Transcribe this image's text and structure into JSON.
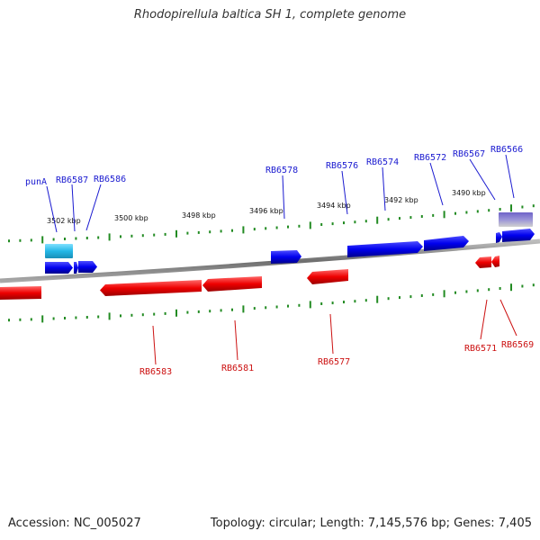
{
  "title": "Rhodopirellula baltica SH 1, complete genome",
  "accession": "Accession: NC_005027",
  "summary": "Topology: circular; Length: 7,145,576 bp; Genes: 7,405",
  "colors": {
    "forward": "#0000ee",
    "reverse": "#ee0000",
    "forward_label": "#1a1ad0",
    "reverse_label": "#cc1111",
    "tick": "#228b22",
    "backbone": "#7a7a7a",
    "cyan_feature": "#25b8e6",
    "purple_feature": "#7a6fd0"
  },
  "scale_labels": [
    "3502 kbp",
    "3500 kbp",
    "3498 kbp",
    "3496 kbp",
    "3494 kbp",
    "3492 kbp",
    "3490 kbp"
  ],
  "forward_genes": [
    "punA",
    "RB6587",
    "RB6586",
    "RB6578",
    "RB6576",
    "RB6574",
    "RB6572",
    "RB6567",
    "RB6566"
  ],
  "reverse_genes": [
    "RB6583",
    "RB6581",
    "RB6577",
    "RB6571",
    "RB6569"
  ]
}
